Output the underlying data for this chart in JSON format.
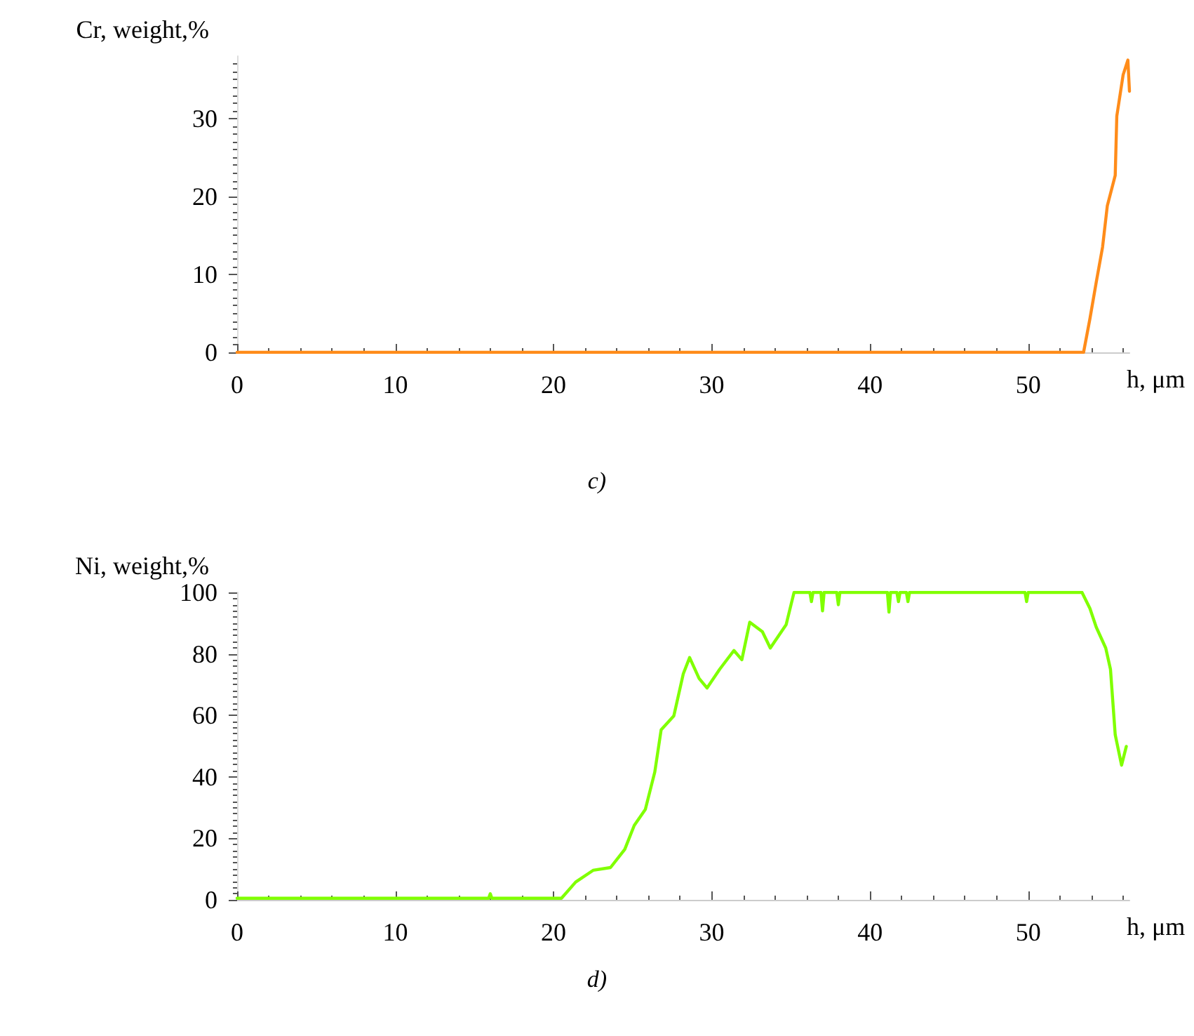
{
  "chart_data": [
    {
      "type": "line",
      "xlabel": "h, μm",
      "ylabel": "Cr, weight,%",
      "annotations": [
        "c)"
      ],
      "xlim": [
        0,
        56.4
      ],
      "xticks": [
        0,
        10,
        20,
        30,
        40,
        50
      ],
      "ylim": [
        0,
        38
      ],
      "yticks": [
        0,
        10,
        20,
        30
      ],
      "marker": "none",
      "line_style": "solid",
      "series": [
        {
          "color": "#ff8c1a",
          "x": [
            0,
            53.5,
            53.9,
            54.3,
            54.7,
            55.0,
            55.5,
            55.6,
            56.0,
            56.3,
            56.4
          ],
          "values": [
            0,
            0,
            4.3,
            9.0,
            13.5,
            18.8,
            22.7,
            30.3,
            35.6,
            37.5,
            33.5
          ]
        }
      ]
    },
    {
      "type": "line",
      "xlabel": "h, μm",
      "ylabel": "Ni, weight,%",
      "annotations": [
        "d)"
      ],
      "xlim": [
        0,
        56.4
      ],
      "xticks": [
        0,
        10,
        20,
        30,
        40,
        50
      ],
      "ylim": [
        0,
        100
      ],
      "yticks": [
        0,
        20,
        40,
        60,
        80,
        100
      ],
      "marker": "none",
      "line_style": "solid",
      "series": [
        {
          "color": "#80ff00",
          "x": [
            0,
            15.9,
            16.0,
            16.1,
            20.5,
            21.4,
            22.5,
            23.6,
            24.5,
            25.1,
            25.8,
            26.4,
            26.8,
            27.6,
            28.2,
            28.6,
            29.2,
            29.7,
            30.5,
            31.4,
            31.9,
            32.4,
            33.2,
            33.7,
            34.7,
            35.2,
            36.2,
            36.3,
            36.4,
            36.9,
            37.0,
            37.1,
            37.5,
            37.9,
            38.0,
            38.1,
            41.1,
            41.2,
            41.3,
            41.7,
            41.8,
            41.9,
            42.3,
            42.4,
            42.5,
            49.8,
            49.9,
            50.0,
            53.4,
            53.9,
            54.3,
            54.9,
            55.2,
            55.5,
            55.9,
            56.2
          ],
          "values": [
            0.5,
            0.5,
            2,
            0.5,
            0.5,
            5.8,
            9.6,
            10.5,
            16.4,
            24.2,
            29.4,
            41.6,
            55.3,
            59.8,
            73.5,
            78.8,
            72,
            68.9,
            75,
            81.1,
            78.1,
            90.3,
            87.2,
            81.9,
            89.5,
            100,
            100,
            97,
            100,
            100,
            94,
            100,
            100,
            100,
            96,
            100,
            100,
            93.6,
            100,
            100,
            97,
            100,
            100,
            97,
            100,
            100,
            97,
            100,
            100,
            94.8,
            88.7,
            81.9,
            75,
            53.7,
            43.8,
            49.9
          ]
        }
      ]
    }
  ]
}
